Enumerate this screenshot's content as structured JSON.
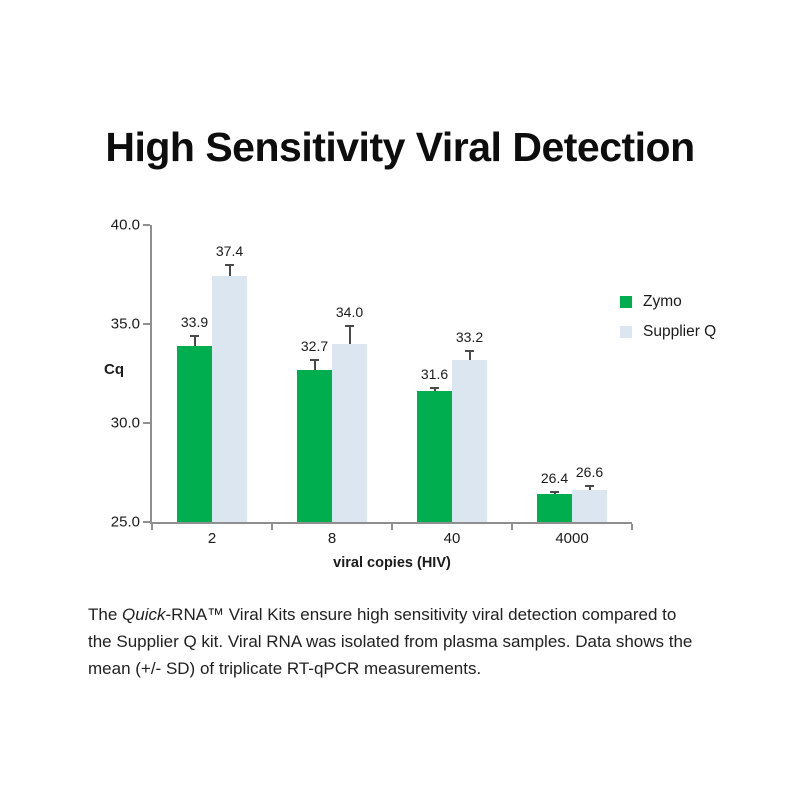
{
  "title": "High Sensitivity Viral Detection",
  "chart_data": {
    "type": "bar",
    "categories": [
      "2",
      "8",
      "40",
      "4000"
    ],
    "series": [
      {
        "name": "Zymo",
        "color": "#00AE50",
        "values": [
          33.9,
          32.7,
          31.6,
          26.4
        ],
        "sd": [
          0.5,
          0.5,
          0.15,
          0.12
        ]
      },
      {
        "name": "Supplier Q",
        "color": "#DCE6F1",
        "values": [
          37.4,
          34.0,
          33.2,
          26.6
        ],
        "sd": [
          0.6,
          0.9,
          0.45,
          0.22
        ]
      }
    ],
    "data_labels": [
      "33.9",
      "37.4",
      "32.7",
      "34.0",
      "31.6",
      "33.2",
      "26.4",
      "26.6"
    ],
    "title": "High Sensitivity Viral Detection",
    "xlabel": "viral copies (HIV)",
    "ylabel": "Cq",
    "ylim": [
      25.0,
      40.0
    ],
    "yticks": [
      {
        "label": "40.0",
        "value": 40
      },
      {
        "label": "35.0",
        "value": 35
      },
      {
        "label": "30.0",
        "value": 30
      },
      {
        "label": "25.0",
        "value": 25
      }
    ],
    "grid": false,
    "legend_position": "right",
    "error_bars": "upper +SD caps only",
    "axis_color": "#8f8f8f"
  },
  "caption": {
    "parts": [
      {
        "text": "The ",
        "style": "normal"
      },
      {
        "text": "Quick",
        "style": "italic"
      },
      {
        "text": "-RNA™ Viral Kits ensure high sensitivity viral detection compared to the Supplier Q kit. Viral RNA was isolated from plasma samples. Data shows the mean (+/- SD) of triplicate RT-qPCR measurements.",
        "style": "normal"
      }
    ]
  }
}
